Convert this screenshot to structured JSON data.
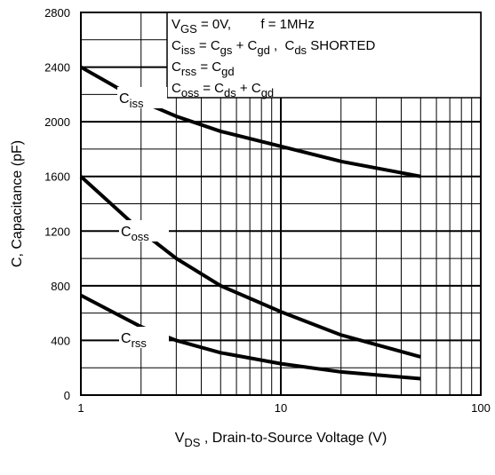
{
  "chart_data": {
    "type": "line",
    "x_label": [
      {
        "text": "V"
      },
      {
        "text": "DS",
        "sub": true
      },
      {
        "text": " , Drain-to-Source Voltage (V)"
      }
    ],
    "y_label": "C, Capacitance (pF)",
    "x": [
      1,
      2,
      3,
      5,
      10,
      20,
      50
    ],
    "series": [
      {
        "label": [
          {
            "text": "C"
          },
          {
            "text": "iss",
            "sub": true
          }
        ],
        "color": "#000000",
        "values": [
          2400,
          2150,
          2040,
          1930,
          1820,
          1710,
          1600
        ]
      },
      {
        "label": [
          {
            "text": "C"
          },
          {
            "text": "oss",
            "sub": true
          }
        ],
        "color": "#000000",
        "values": [
          1600,
          1200,
          1000,
          800,
          610,
          440,
          280
        ]
      },
      {
        "label": [
          {
            "text": "C"
          },
          {
            "text": "rss",
            "sub": true
          }
        ],
        "color": "#000000",
        "values": [
          730,
          500,
          400,
          310,
          230,
          170,
          120
        ]
      }
    ],
    "xlog": true,
    "xlim": [
      1,
      100
    ],
    "xticks": [
      1,
      10,
      100
    ],
    "ylim": [
      0,
      2800
    ],
    "yticks": [
      0,
      400,
      800,
      1200,
      1600,
      2000,
      2400,
      2800
    ],
    "grid": true,
    "minor_grid": true,
    "annotations": [
      [
        {
          "text": "V"
        },
        {
          "text": "GS",
          "sub": true
        },
        {
          "text": " = 0V,        f = 1MHz"
        }
      ],
      [
        {
          "text": "C"
        },
        {
          "text": "iss",
          "sub": true
        },
        {
          "text": " = C"
        },
        {
          "text": "gs",
          "sub": true
        },
        {
          "text": " + C"
        },
        {
          "text": "gd",
          "sub": true
        },
        {
          "text": " ,  C"
        },
        {
          "text": "ds",
          "sub": true
        },
        {
          "text": " SHORTED"
        }
      ],
      [
        {
          "text": "C"
        },
        {
          "text": "rss",
          "sub": true
        },
        {
          "text": " = C"
        },
        {
          "text": "gd",
          "sub": true
        }
      ],
      [
        {
          "text": "C"
        },
        {
          "text": "oss",
          "sub": true
        },
        {
          "text": " = C"
        },
        {
          "text": "ds",
          "sub": true
        },
        {
          "text": " + C"
        },
        {
          "text": "gd",
          "sub": true
        }
      ]
    ]
  }
}
